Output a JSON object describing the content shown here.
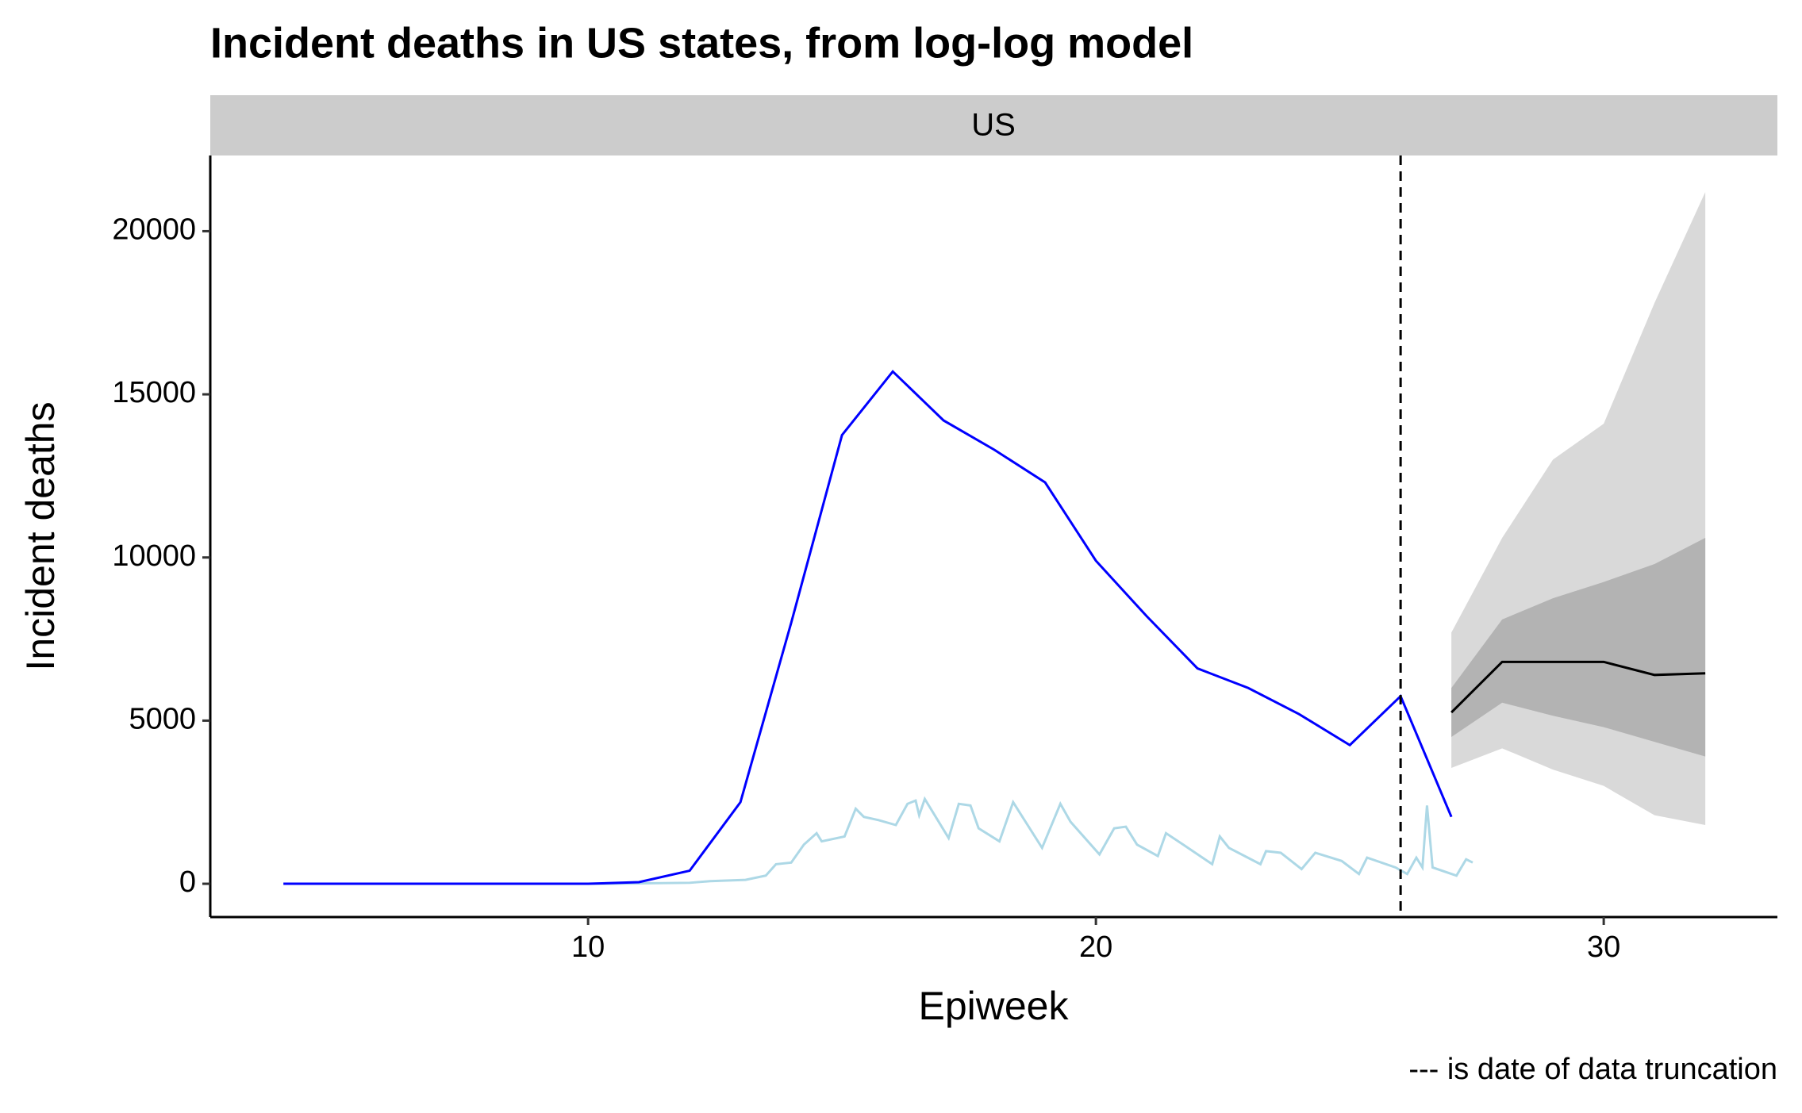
{
  "chart_data": {
    "type": "line",
    "title": "Incident deaths in US states, from log-log model",
    "facet": "US",
    "x_label": "Epiweek",
    "y_label": "Incident deaths",
    "caption": "--- is date of data truncation",
    "xlim": [
      2.56,
      33.42
    ],
    "xticks": [
      10,
      20,
      30
    ],
    "ylim": [
      -1020,
      22320
    ],
    "yticks": [
      0,
      5000,
      10000,
      15000,
      20000
    ],
    "vline": {
      "x": 26,
      "color": "#000000"
    },
    "bands": [
      {
        "color": "#d9d9d9",
        "x": [
          27,
          28,
          29,
          30,
          31,
          32
        ],
        "lower": [
          3550,
          4150,
          3500,
          3000,
          2100,
          1800
        ],
        "upper": [
          7700,
          10600,
          13000,
          14100,
          17800,
          21200
        ]
      },
      {
        "color": "#b3b3b3",
        "x": [
          27,
          28,
          29,
          30,
          31,
          32
        ],
        "lower": [
          4500,
          5550,
          5150,
          4800,
          4350,
          3900
        ],
        "upper": [
          6000,
          8100,
          8750,
          9250,
          9800,
          10600
        ]
      }
    ],
    "series": [
      {
        "color": "#0000ff",
        "x": [
          4,
          5,
          6,
          7,
          8,
          9,
          10,
          11,
          12,
          13,
          14,
          15,
          16,
          17,
          18,
          19,
          20,
          21,
          22,
          23,
          24,
          25,
          26,
          27
        ],
        "values": [
          0,
          0,
          0,
          0,
          0,
          0,
          0,
          50,
          400,
          2500,
          8000,
          13750,
          15700,
          14200,
          13300,
          12300,
          9900,
          8200,
          6600,
          6000,
          5200,
          4250,
          5750,
          2050
        ]
      },
      {
        "color": "#add8e6",
        "x": [
          4.34,
          10.4,
          12.0,
          12.4,
          13.1,
          13.5,
          13.7,
          14.0,
          14.25,
          14.5,
          14.6,
          15.05,
          15.27,
          15.43,
          15.72,
          16.06,
          16.29,
          16.45,
          16.52,
          16.63,
          17.1,
          17.3,
          17.53,
          17.69,
          18.1,
          18.37,
          18.94,
          19.3,
          19.5,
          20.07,
          20.36,
          20.59,
          20.81,
          21.22,
          21.38,
          21.72,
          22.29,
          22.44,
          22.62,
          23.24,
          23.35,
          23.64,
          24.05,
          24.32,
          24.84,
          25.18,
          25.34,
          25.9,
          26.13,
          26.31,
          26.43,
          26.52,
          26.63,
          27.1,
          27.29,
          27.42
        ],
        "values": [
          0,
          0,
          30,
          80,
          120,
          250,
          600,
          650,
          1200,
          1550,
          1300,
          1450,
          2300,
          2050,
          1950,
          1800,
          2450,
          2550,
          2100,
          2600,
          1400,
          2450,
          2400,
          1700,
          1300,
          2500,
          1100,
          2450,
          1900,
          900,
          1700,
          1750,
          1200,
          850,
          1550,
          1200,
          600,
          1450,
          1100,
          600,
          1000,
          950,
          450,
          950,
          700,
          300,
          800,
          500,
          300,
          800,
          500,
          2400,
          500,
          250,
          750,
          650
        ]
      },
      {
        "color": "#000000",
        "x": [
          27,
          28,
          29,
          30,
          31,
          32
        ],
        "values": [
          5250,
          6800,
          6800,
          6800,
          6400,
          6450
        ]
      }
    ]
  }
}
